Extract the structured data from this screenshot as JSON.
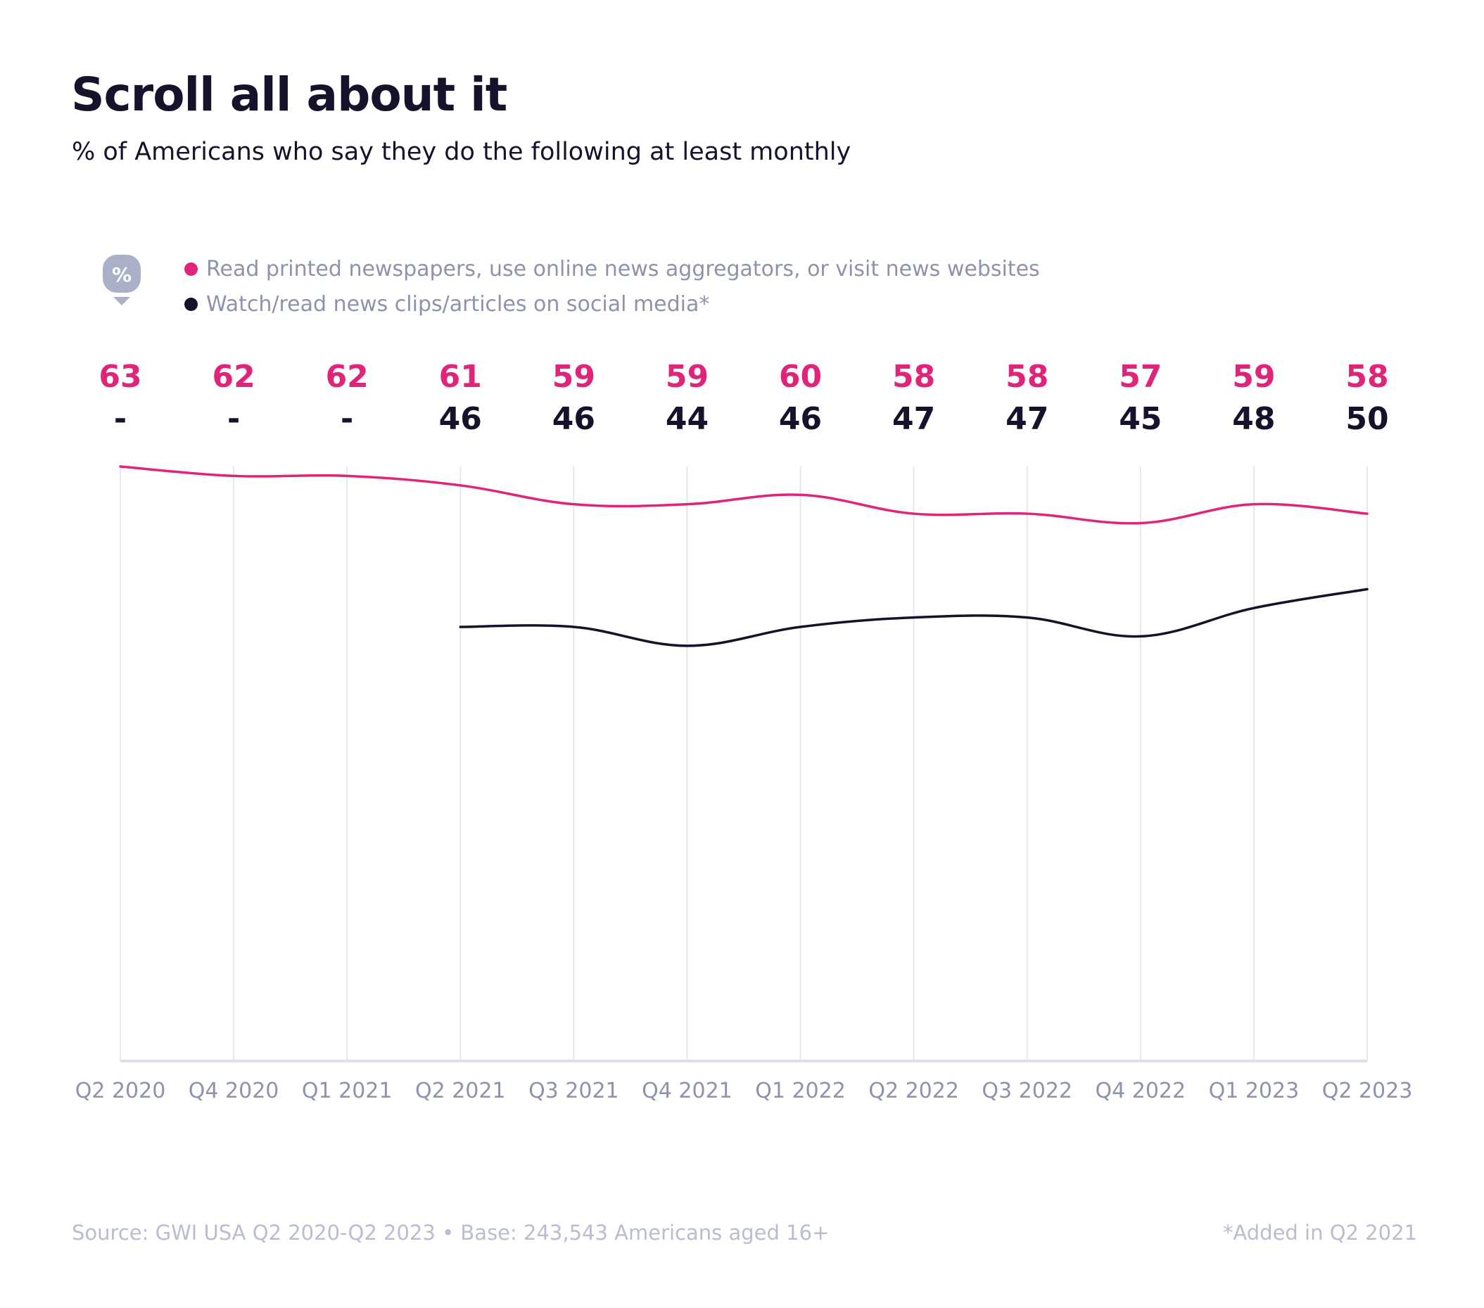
{
  "title": "Scroll all about it",
  "subtitle": "% of Americans who say they do the following at least monthly",
  "legend": {
    "badge_symbol": "%",
    "badge_icon": "percent-pin-icon",
    "items": [
      {
        "label": "Read printed newspapers, use online news aggregators, or visit news websites",
        "color": "#e0247a"
      },
      {
        "label": "Watch/read news clips/articles on social media*",
        "color": "#15132b"
      }
    ]
  },
  "footer": {
    "source": "Source: GWI USA Q2 2020-Q2 2023 • Base: 243,543 Americans aged 16+",
    "note": "*Added in Q2 2021"
  },
  "chart_data": {
    "type": "line",
    "x": [
      "Q2 2020",
      "Q4 2020",
      "Q1 2021",
      "Q2 2021",
      "Q3 2021",
      "Q4 2021",
      "Q1 2022",
      "Q2 2022",
      "Q3 2022",
      "Q4 2022",
      "Q1 2023",
      "Q2 2023"
    ],
    "missing_label": "-",
    "series": [
      {
        "name": "Read printed newspapers, use online news aggregators, or visit news websites",
        "color": "#e0247a",
        "values": [
          63,
          62,
          62,
          61,
          59,
          59,
          60,
          58,
          58,
          57,
          59,
          58
        ]
      },
      {
        "name": "Watch/read news clips/articles on social media*",
        "color": "#15132b",
        "values": [
          null,
          null,
          null,
          46,
          46,
          44,
          46,
          47,
          47,
          45,
          48,
          50
        ]
      }
    ],
    "ylim": [
      0,
      63
    ],
    "grid": "vertical",
    "legend_position": "top-left"
  }
}
